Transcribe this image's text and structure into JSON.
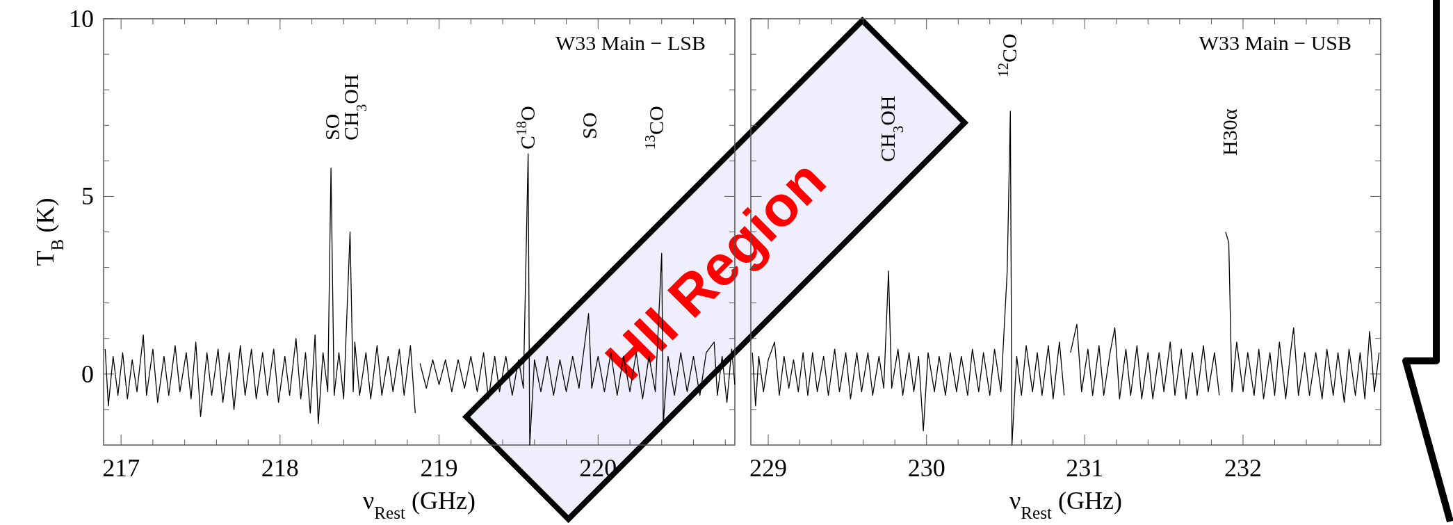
{
  "chart_data": [
    {
      "type": "line",
      "title": "W33 Main − LSB",
      "xlabel": "ν$_{Rest}$ (GHz)",
      "ylabel": "T$_{B}$ (K)",
      "xlim": [
        216.89,
        220.86
      ],
      "ylim": [
        -2,
        10
      ],
      "xticks": [
        217,
        {
          "value": 217.2,
          "label": null
        },
        {
          "value": 217.4,
          "label": null
        },
        {
          "value": 217.6,
          "label": null
        },
        {
          "value": 217.8,
          "label": null
        },
        218,
        {
          "value": 218.2,
          "label": null
        },
        {
          "value": 218.4,
          "label": null
        },
        {
          "value": 218.6,
          "label": null
        },
        {
          "value": 218.8,
          "label": null
        },
        219,
        {
          "value": 219.2,
          "label": null
        },
        {
          "value": 219.4,
          "label": null
        },
        {
          "value": 219.6,
          "label": null
        },
        {
          "value": 219.8,
          "label": null
        },
        220,
        {
          "value": 220.2,
          "label": null
        },
        {
          "value": 220.4,
          "label": null
        },
        {
          "value": 220.6,
          "label": null
        },
        {
          "value": 220.8,
          "label": null
        }
      ],
      "yticks": [
        {
          "value": -1,
          "label": null
        },
        0,
        {
          "value": 1,
          "label": null
        },
        {
          "value": 2,
          "label": null
        },
        {
          "value": 3,
          "label": null
        },
        {
          "value": 4,
          "label": null
        },
        5,
        {
          "value": 6,
          "label": null
        },
        {
          "value": 7,
          "label": null
        },
        {
          "value": 8,
          "label": null
        },
        {
          "value": 9,
          "label": null
        },
        10
      ],
      "annotations": [
        "SO",
        "CH$_{3}$OH",
        "C$^{18}$O",
        "SO",
        "$^{13}$CO",
        "HII Region"
      ],
      "series": [
        {
          "color": "#000000",
          "x": [
            216.9,
            216.92,
            216.95,
            216.98,
            217.01,
            217.04,
            217.07,
            217.1,
            217.14,
            217.16,
            217.2,
            217.23,
            217.27,
            217.3,
            217.34,
            217.37,
            217.41,
            217.44,
            217.47,
            217.5,
            217.54,
            217.57,
            217.61,
            217.64,
            217.68,
            217.71,
            217.75,
            217.78,
            217.82,
            217.85,
            217.89,
            217.92,
            217.96,
            217.99,
            218.03,
            218.06,
            218.1,
            218.13,
            218.16,
            218.19,
            218.22,
            218.24,
            218.27,
            218.3,
            218.32,
            218.34,
            218.37,
            218.4,
            218.44,
            218.46,
            218.47,
            218.5,
            218.54,
            218.57,
            218.61,
            218.64,
            218.68,
            218.71,
            218.75,
            218.78,
            218.82,
            218.85,
            218.86,
            218.88,
            218.92,
            218.96,
            219.0,
            219.04,
            219.08,
            219.12,
            219.16,
            219.2,
            219.24,
            219.28,
            219.31,
            219.35,
            219.38,
            219.42,
            219.46,
            219.5,
            219.53,
            219.56,
            219.57,
            219.6,
            219.64,
            219.68,
            219.72,
            219.76,
            219.8,
            219.84,
            219.88,
            219.94,
            219.96,
            220.0,
            220.04,
            220.08,
            220.12,
            220.16,
            220.2,
            220.24,
            220.28,
            220.32,
            220.36,
            220.4,
            220.41,
            220.44,
            220.48,
            220.52,
            220.56,
            220.6,
            220.64,
            220.68,
            220.73,
            220.75,
            220.78,
            220.81,
            220.84,
            220.86
          ],
          "values": [
            0.7,
            -0.9,
            0.5,
            -0.6,
            0.6,
            -0.7,
            0.4,
            -0.5,
            1.1,
            -0.6,
            0.7,
            -0.8,
            0.5,
            -0.6,
            0.8,
            -0.5,
            0.6,
            -0.7,
            0.9,
            -1.2,
            0.6,
            -0.6,
            0.7,
            -0.8,
            0.6,
            -1.0,
            0.8,
            -0.6,
            0.7,
            -0.7,
            0.6,
            -0.6,
            0.7,
            -0.8,
            0.5,
            -0.6,
            1.0,
            -0.7,
            0.6,
            -1.1,
            1.1,
            -1.4,
            0.6,
            -0.5,
            5.8,
            -0.6,
            0.6,
            -0.7,
            4.0,
            -0.5,
            0.9,
            -0.6,
            0.6,
            -0.7,
            0.8,
            -0.6,
            0.5,
            -0.5,
            0.7,
            -0.6,
            0.8,
            -1.1,
            null,
            0.3,
            -0.4,
            0.4,
            -0.3,
            0.4,
            -0.5,
            0.4,
            -0.4,
            0.5,
            -0.5,
            0.6,
            -0.7,
            0.5,
            -0.5,
            0.5,
            -0.6,
            0.4,
            -0.4,
            6.2,
            -2.0,
            0.4,
            -0.5,
            0.5,
            -0.6,
            0.4,
            -0.5,
            0.5,
            -0.4,
            1.7,
            -0.4,
            0.5,
            -0.5,
            0.6,
            -0.6,
            0.5,
            -0.5,
            0.6,
            -0.7,
            0.5,
            -0.5,
            3.4,
            -1.4,
            0.5,
            -0.6,
            0.6,
            -0.5,
            0.5,
            -0.6,
            0.6,
            0.9,
            -0.6,
            0.5,
            -0.8,
            0.7,
            -0.3
          ]
        }
      ]
    },
    {
      "type": "line",
      "title": "W33 Main − USB",
      "xlabel": "ν$_{Rest}$ (GHz)",
      "xlim": [
        228.89,
        232.87
      ],
      "ylim": [
        -2,
        10
      ],
      "tick_labels": "x",
      "xticks": [
        229,
        {
          "value": 229.2,
          "label": null
        },
        {
          "value": 229.4,
          "label": null
        },
        {
          "value": 229.6,
          "label": null
        },
        {
          "value": 229.8,
          "label": null
        },
        230,
        {
          "value": 230.2,
          "label": null
        },
        {
          "value": 230.4,
          "label": null
        },
        {
          "value": 230.6,
          "label": null
        },
        {
          "value": 230.8,
          "label": null
        },
        231,
        {
          "value": 231.2,
          "label": null
        },
        {
          "value": 231.4,
          "label": null
        },
        {
          "value": 231.6,
          "label": null
        },
        {
          "value": 231.8,
          "label": null
        },
        232,
        {
          "value": 232.2,
          "label": null
        },
        {
          "value": 232.4,
          "label": null
        },
        {
          "value": 232.6,
          "label": null
        },
        {
          "value": 232.8,
          "label": null
        }
      ],
      "yticks": [
        {
          "value": -1,
          "label": null
        },
        0,
        {
          "value": 1,
          "label": null
        },
        {
          "value": 2,
          "label": null
        },
        {
          "value": 3,
          "label": null
        },
        {
          "value": 4,
          "label": null
        },
        5,
        {
          "value": 6,
          "label": null
        },
        {
          "value": 7,
          "label": null
        },
        {
          "value": 8,
          "label": null
        },
        {
          "value": 9,
          "label": null
        },
        10
      ],
      "annotations": [
        "CH$_{3}$OH",
        "$^{12}$CO",
        "H30α"
      ],
      "series": [
        {
          "color": "#000000",
          "x": [
            228.9,
            228.92,
            228.94,
            228.97,
            229.0,
            229.04,
            229.07,
            229.1,
            229.13,
            229.16,
            229.19,
            229.22,
            229.25,
            229.28,
            229.31,
            229.35,
            229.38,
            229.42,
            229.45,
            229.49,
            229.52,
            229.56,
            229.59,
            229.63,
            229.66,
            229.7,
            229.73,
            229.76,
            229.78,
            229.82,
            229.85,
            229.89,
            229.92,
            229.95,
            229.98,
            230.01,
            230.05,
            230.08,
            230.12,
            230.15,
            230.19,
            230.22,
            230.26,
            230.29,
            230.33,
            230.36,
            230.4,
            230.43,
            230.47,
            230.51,
            230.53,
            230.54,
            230.57,
            230.6,
            230.63,
            230.67,
            230.7,
            230.73,
            230.77,
            230.8,
            230.84,
            230.87,
            230.89,
            230.91,
            230.95,
            230.98,
            231.02,
            231.05,
            231.09,
            231.12,
            231.16,
            231.19,
            231.22,
            231.26,
            231.29,
            231.33,
            231.36,
            231.4,
            231.43,
            231.47,
            231.5,
            231.54,
            231.57,
            231.61,
            231.64,
            231.68,
            231.71,
            231.75,
            231.78,
            231.82,
            231.85,
            231.87,
            231.89,
            231.91,
            231.93,
            231.96,
            232.0,
            232.03,
            232.07,
            232.1,
            232.13,
            232.17,
            232.2,
            232.23,
            232.27,
            232.3,
            232.32,
            232.35,
            232.39,
            232.42,
            232.46,
            232.5,
            232.53,
            232.57,
            232.6,
            232.64,
            232.67,
            232.71,
            232.74,
            232.77,
            232.8,
            232.83,
            232.86
          ],
          "values": [
            0.6,
            -0.9,
            0.5,
            -0.5,
            0.4,
            0.9,
            -0.6,
            0.5,
            -0.4,
            0.4,
            -0.5,
            0.6,
            -0.6,
            0.6,
            -0.5,
            0.5,
            -0.6,
            0.7,
            -0.5,
            0.6,
            -0.7,
            0.6,
            -0.5,
            0.6,
            -0.6,
            0.5,
            -0.4,
            2.9,
            -0.4,
            0.7,
            -0.6,
            0.6,
            -0.5,
            0.5,
            -1.6,
            0.6,
            -0.5,
            0.5,
            -0.6,
            0.6,
            -0.5,
            0.5,
            -0.6,
            0.7,
            -0.5,
            0.6,
            -0.6,
            0.7,
            -0.5,
            2.9,
            7.4,
            -2.0,
            0.5,
            -0.6,
            0.8,
            -0.5,
            0.6,
            -0.6,
            0.8,
            -0.7,
            0.9,
            -0.6,
            null,
            0.6,
            1.4,
            -0.5,
            0.7,
            -0.6,
            0.8,
            -0.6,
            0.6,
            1.3,
            -0.7,
            0.7,
            -0.6,
            0.8,
            -0.7,
            0.6,
            -0.7,
            0.6,
            -0.5,
            0.9,
            -0.6,
            0.7,
            -0.7,
            0.6,
            -0.6,
            0.8,
            -0.5,
            0.6,
            -0.6,
            null,
            4.0,
            3.7,
            -0.5,
            0.9,
            -0.5,
            0.6,
            -0.6,
            0.7,
            -0.7,
            0.6,
            -0.6,
            0.9,
            -0.7,
            0.6,
            1.3,
            -0.6,
            0.6,
            -0.6,
            0.6,
            -0.7,
            0.7,
            -0.6,
            0.6,
            -0.8,
            0.7,
            -0.6,
            0.6,
            -0.7,
            1.2,
            -0.5,
            0.6
          ]
        }
      ]
    }
  ]
}
